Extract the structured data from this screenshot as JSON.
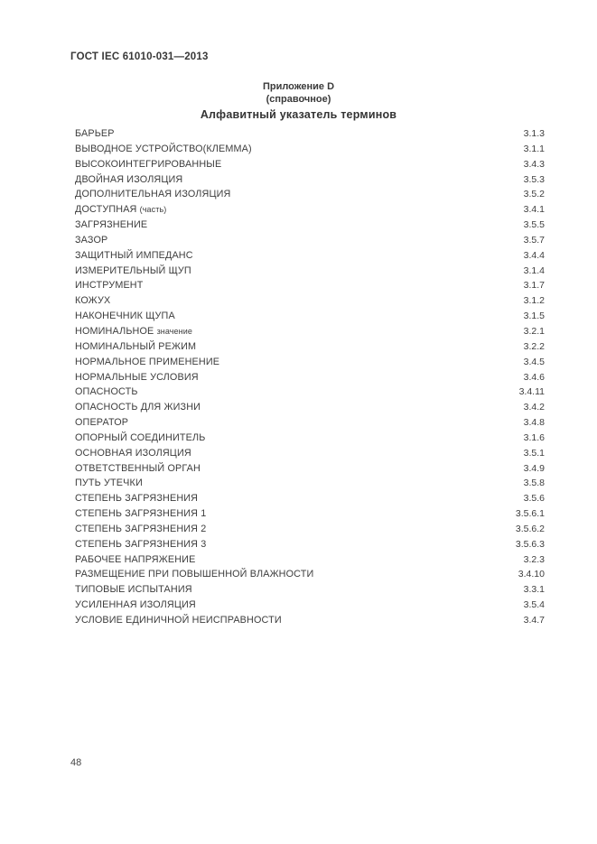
{
  "page": {
    "header": "ГОСТ IEC 61010-031—2013",
    "appendix_line1": "Приложение D",
    "appendix_line2": "(справочное)",
    "title": "Алфавитный указатель терминов",
    "page_number": "48",
    "text_color": "#3a3a3a",
    "background_color": "#ffffff"
  },
  "index": {
    "entries": [
      {
        "term": "БАРЬЕР",
        "suffix": "",
        "ref": "3.1.3"
      },
      {
        "term": "ВЫВОДНОЕ УСТРОЙСТВО(КЛЕММА)",
        "suffix": "",
        "ref": "3.1.1"
      },
      {
        "term": "ВЫСОКОИНТЕГРИРОВАННЫЕ",
        "suffix": "",
        "ref": "3.4.3"
      },
      {
        "term": "ДВОЙНАЯ ИЗОЛЯЦИЯ",
        "suffix": "",
        "ref": "3.5.3"
      },
      {
        "term": "ДОПОЛНИТЕЛЬНАЯ ИЗОЛЯЦИЯ",
        "suffix": "",
        "ref": "3.5.2"
      },
      {
        "term": "ДОСТУПНАЯ",
        "suffix": "(часть)",
        "ref": "3.4.1"
      },
      {
        "term": "ЗАГРЯЗНЕНИЕ",
        "suffix": "",
        "ref": "3.5.5"
      },
      {
        "term": "ЗАЗОР",
        "suffix": "",
        "ref": "3.5.7"
      },
      {
        "term": "ЗАЩИТНЫЙ ИМПЕДАНС",
        "suffix": "",
        "ref": "3.4.4"
      },
      {
        "term": "ИЗМЕРИТЕЛЬНЫЙ ЩУП",
        "suffix": "",
        "ref": "3.1.4"
      },
      {
        "term": "ИНСТРУМЕНТ",
        "suffix": "",
        "ref": "3.1.7"
      },
      {
        "term": "КОЖУХ",
        "suffix": "",
        "ref": "3.1.2"
      },
      {
        "term": "НАКОНЕЧНИК ЩУПА",
        "suffix": "",
        "ref": "3.1.5"
      },
      {
        "term": "НОМИНАЛЬНОЕ",
        "suffix": "значение",
        "ref": "3.2.1"
      },
      {
        "term": "НОМИНАЛЬНЫЙ РЕЖИМ",
        "suffix": "",
        "ref": "3.2.2"
      },
      {
        "term": "НОРМАЛЬНОЕ ПРИМЕНЕНИЕ",
        "suffix": "",
        "ref": "3.4.5"
      },
      {
        "term": "НОРМАЛЬНЫЕ УСЛОВИЯ",
        "suffix": "",
        "ref": "3.4.6"
      },
      {
        "term": "ОПАСНОСТЬ",
        "suffix": "",
        "ref": "3.4.11"
      },
      {
        "term": "ОПАСНОСТЬ ДЛЯ ЖИЗНИ",
        "suffix": "",
        "ref": "3.4.2"
      },
      {
        "term": "ОПЕРАТОР",
        "suffix": "",
        "ref": "3.4.8"
      },
      {
        "term": "ОПОРНЫЙ СОЕДИНИТЕЛЬ",
        "suffix": "",
        "ref": "3.1.6"
      },
      {
        "term": "ОСНОВНАЯ ИЗОЛЯЦИЯ",
        "suffix": "",
        "ref": "3.5.1"
      },
      {
        "term": "ОТВЕТСТВЕННЫЙ ОРГАН",
        "suffix": "",
        "ref": "3.4.9"
      },
      {
        "term": "ПУТЬ УТЕЧКИ",
        "suffix": "",
        "ref": "3.5.8"
      },
      {
        "term": "СТЕПЕНЬ ЗАГРЯЗНЕНИЯ",
        "suffix": "",
        "ref": "3.5.6"
      },
      {
        "term": "СТЕПЕНЬ ЗАГРЯЗНЕНИЯ 1",
        "suffix": "",
        "ref": "3.5.6.1"
      },
      {
        "term": "СТЕПЕНЬ ЗАГРЯЗНЕНИЯ 2",
        "suffix": "",
        "ref": "3.5.6.2"
      },
      {
        "term": "СТЕПЕНЬ ЗАГРЯЗНЕНИЯ 3",
        "suffix": "",
        "ref": "3.5.6.3"
      },
      {
        "term": "РАБОЧЕЕ НАПРЯЖЕНИЕ",
        "suffix": "",
        "ref": "3.2.3"
      },
      {
        "term": "РАЗМЕЩЕНИЕ ПРИ ПОВЫШЕННОЙ ВЛАЖНОСТИ",
        "suffix": "",
        "ref": "3.4.10"
      },
      {
        "term": "ТИПОВЫЕ ИСПЫТАНИЯ",
        "suffix": "",
        "ref": "3.3.1"
      },
      {
        "term": "УСИЛЕННАЯ ИЗОЛЯЦИЯ",
        "suffix": "",
        "ref": "3.5.4"
      },
      {
        "term": "УСЛОВИЕ ЕДИНИЧНОЙ НЕИСПРАВНОСТИ",
        "suffix": "",
        "ref": "3.4.7"
      }
    ]
  }
}
